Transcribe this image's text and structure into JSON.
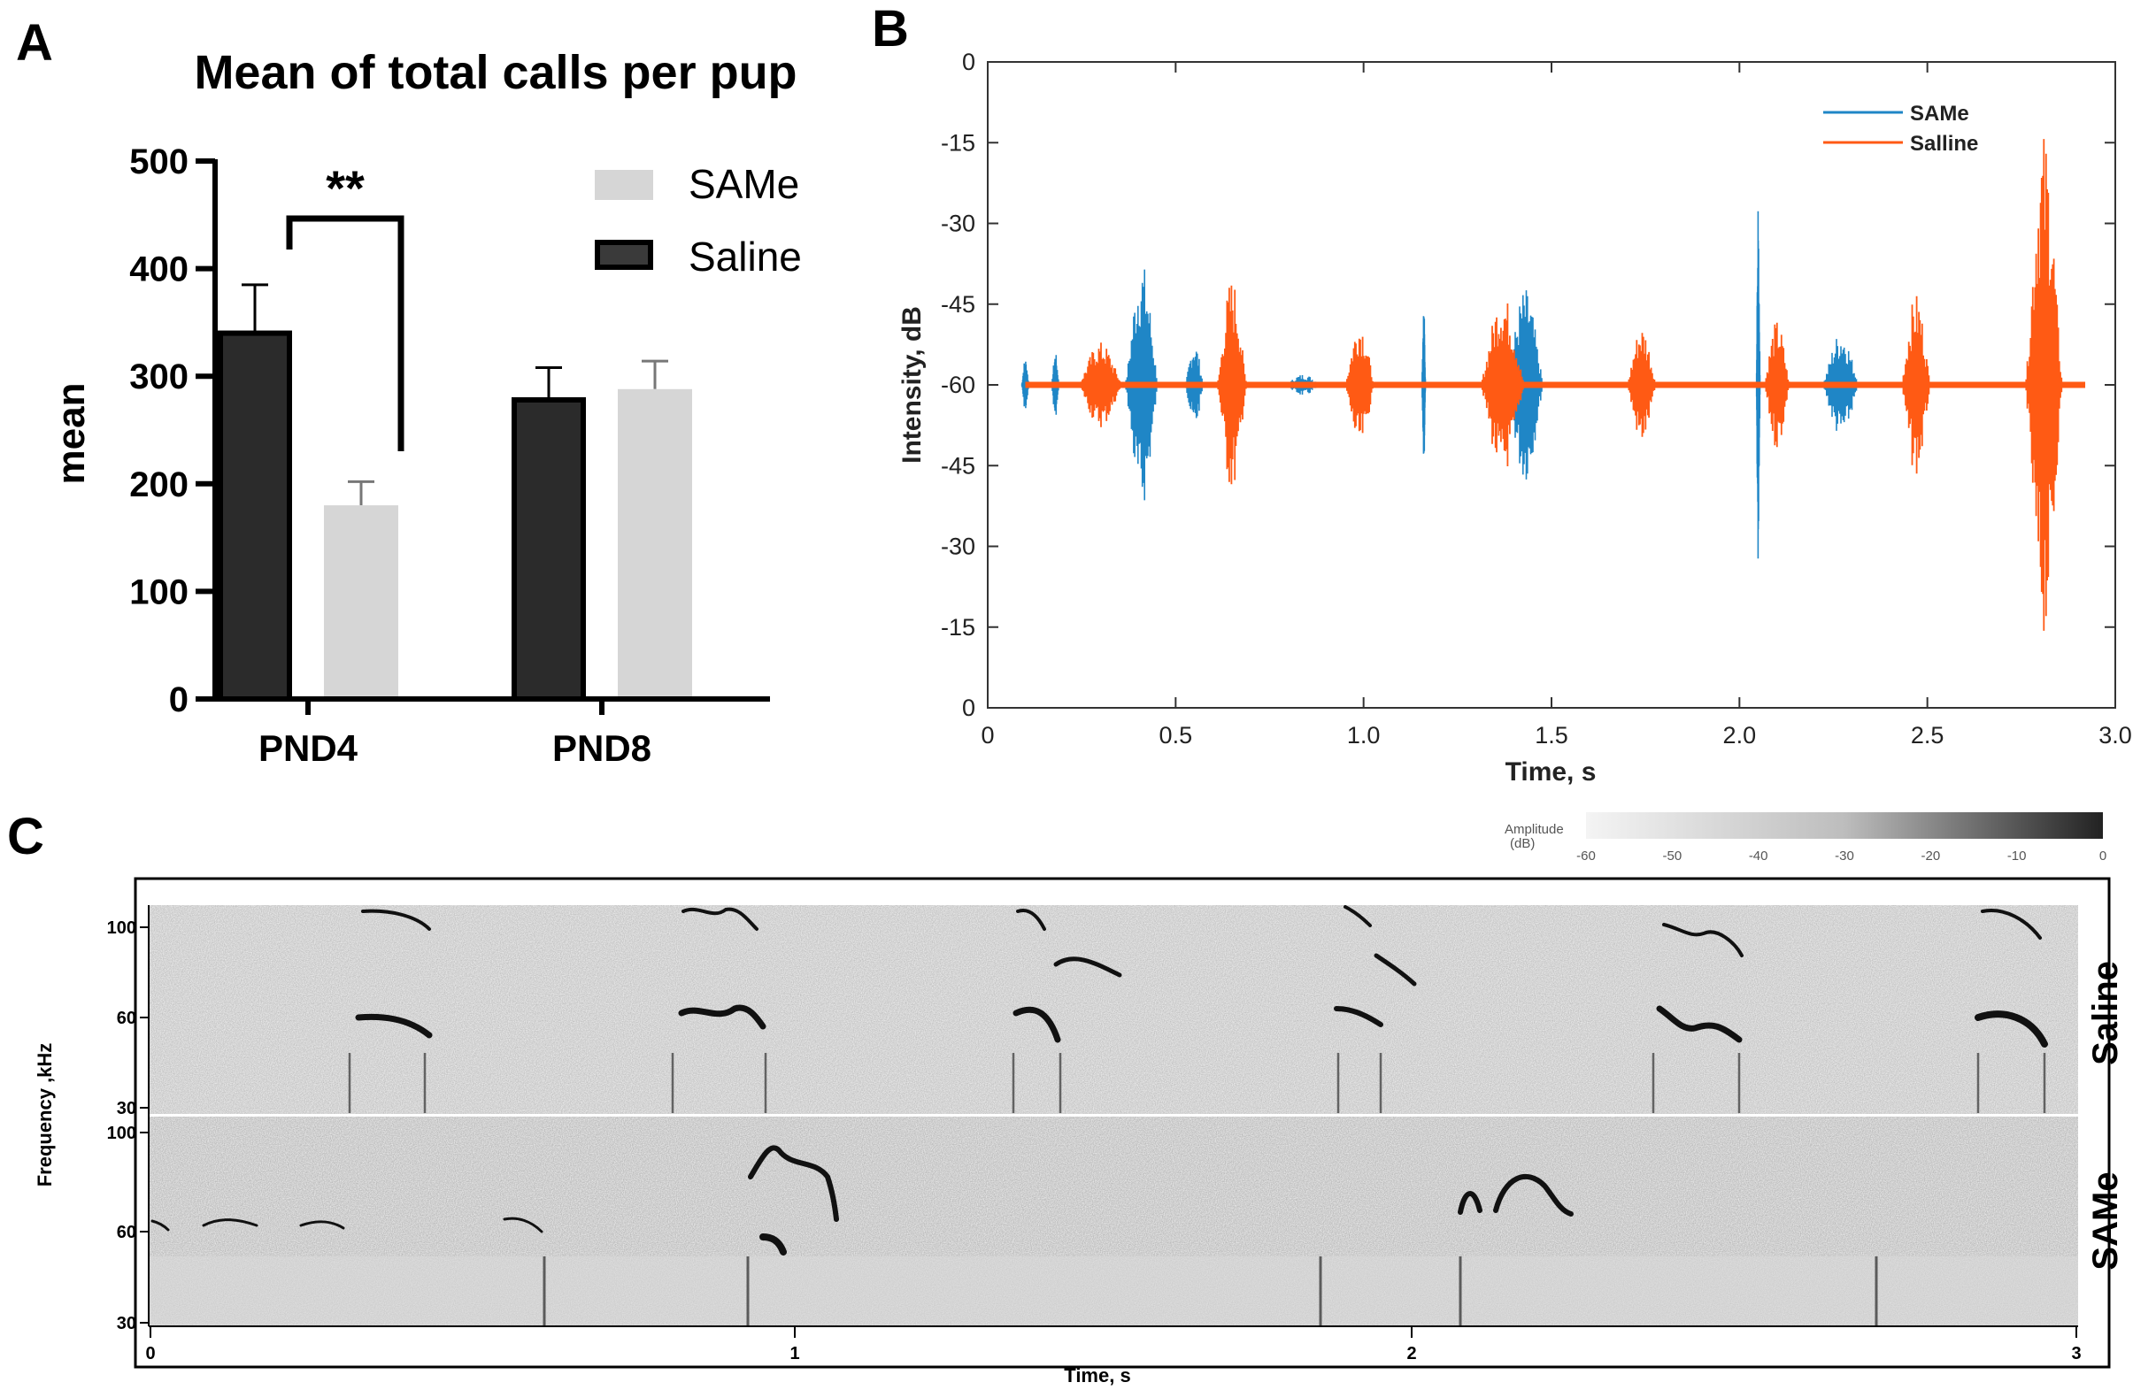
{
  "panel_labels": {
    "a": "A",
    "b": "B",
    "c": "C"
  },
  "chart_data": [
    {
      "type": "bar",
      "title": "Mean of total calls per pup",
      "xlabel": "",
      "ylabel": "mean",
      "ylim": [
        0,
        500
      ],
      "yticks": [
        0,
        100,
        200,
        300,
        400,
        500
      ],
      "categories": [
        "PND4",
        "PND8"
      ],
      "series": [
        {
          "name": "Saline",
          "color": "#2b2b2b",
          "values": [
            340,
            278
          ],
          "errors": [
            45,
            30
          ]
        },
        {
          "name": "SAMe",
          "color": "#d6d6d6",
          "values": [
            180,
            288
          ],
          "errors": [
            22,
            26
          ]
        }
      ],
      "legend": [
        {
          "name": "SAMe"
        },
        {
          "name": "Saline"
        }
      ],
      "annotation": {
        "text": "**",
        "between": [
          "Saline PND4",
          "SAMe PND4"
        ]
      },
      "grid": false
    },
    {
      "type": "line",
      "title": "",
      "xlabel": "Time, s",
      "ylabel": "Intensity, dB",
      "xlim": [
        0,
        3.0
      ],
      "xticks": [
        "0",
        "0.5",
        "1.0",
        "1.5",
        "2.0",
        "2.5",
        "3.0"
      ],
      "yticks": [
        "0",
        "-15",
        "-30",
        "-45",
        "-60",
        "-45",
        "-30",
        "-15",
        "0"
      ],
      "baseline_db": -60,
      "legend": [
        {
          "name": "SAMe",
          "color": "#1f86c6"
        },
        {
          "name": "Salline",
          "color": "#ff5a14"
        }
      ],
      "series": [
        {
          "name": "SAMe",
          "color": "#1f86c6",
          "bursts": [
            {
              "t": 0.1,
              "peak_db": -55,
              "width": 0.02
            },
            {
              "t": 0.18,
              "peak_db": -54,
              "width": 0.02
            },
            {
              "t": 0.41,
              "peak_db": -37,
              "width": 0.09
            },
            {
              "t": 0.55,
              "peak_db": -52,
              "width": 0.05
            },
            {
              "t": 0.84,
              "peak_db": -58,
              "width": 0.1
            },
            {
              "t": 1.16,
              "peak_db": -45,
              "width": 0.01
            },
            {
              "t": 1.43,
              "peak_db": -42,
              "width": 0.1
            },
            {
              "t": 2.05,
              "peak_db": -27,
              "width": 0.01
            },
            {
              "t": 2.27,
              "peak_db": -50,
              "width": 0.1
            }
          ]
        },
        {
          "name": "Salline",
          "color": "#ff5a14",
          "bursts": [
            {
              "t": 0.3,
              "peak_db": -52,
              "width": 0.12
            },
            {
              "t": 0.65,
              "peak_db": -40,
              "width": 0.08
            },
            {
              "t": 0.99,
              "peak_db": -48,
              "width": 0.08
            },
            {
              "t": 1.37,
              "peak_db": -43,
              "width": 0.12
            },
            {
              "t": 1.74,
              "peak_db": -49,
              "width": 0.08
            },
            {
              "t": 2.1,
              "peak_db": -48,
              "width": 0.07
            },
            {
              "t": 2.47,
              "peak_db": -43,
              "width": 0.08
            },
            {
              "t": 2.81,
              "peak_db": -13,
              "width": 0.1
            }
          ]
        }
      ]
    },
    {
      "type": "heatmap",
      "title": "",
      "xlabel": "Time, s",
      "ylabel": "Frequency ,kHz",
      "xticks": [
        "0",
        "1",
        "2",
        "3"
      ],
      "colorbar": {
        "label": "Amplitude (dB)",
        "ticks": [
          "-60",
          "-50",
          "-40",
          "-30",
          "-20",
          "-10",
          "0"
        ]
      },
      "rows": [
        {
          "name": "Saline",
          "yticks": [
            "100",
            "60",
            "30"
          ],
          "call_times_s": [
            0.37,
            0.86,
            1.39,
            1.97,
            2.45,
            2.9
          ]
        },
        {
          "name": "SAMe",
          "yticks": [
            "100",
            "60",
            "30"
          ],
          "call_times_s": [
            0.12,
            0.28,
            0.58,
            0.95,
            2.17
          ]
        }
      ]
    }
  ]
}
